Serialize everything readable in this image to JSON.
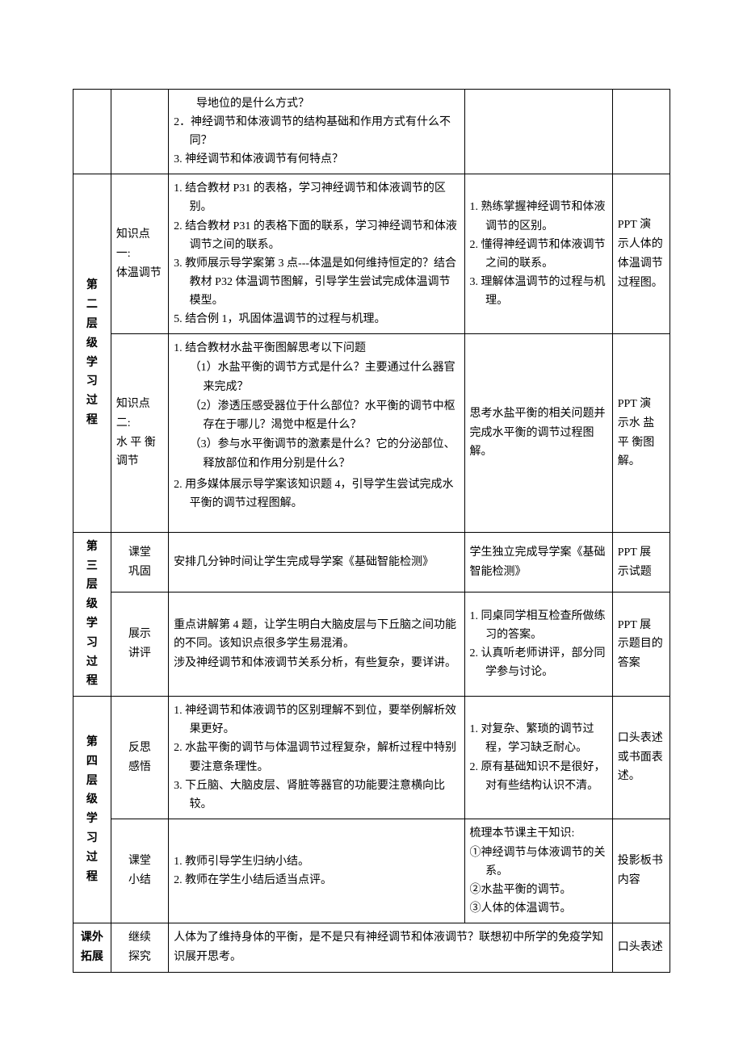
{
  "row0": {
    "c2_items": [
      "　　导地位的是什么方式？",
      "2．神经调节和体液调节的结构基础和作用方式有什么不同？",
      "3. 神经调节和体液调节有何特点？"
    ]
  },
  "row1": {
    "c0_lines": [
      "第",
      "二",
      "层",
      "级",
      "学",
      "习",
      "过",
      "程"
    ],
    "c1": "知识点一:\n体温调节",
    "c2_items": [
      "1. 结合教材 P31 的表格，学习神经调节和体液调节的区别。",
      "2. 结合教材 P31 的表格下面的联系，学习神经调节和体液调节之间的联系。",
      "3. 教师展示导学案第 3 点---体温是如何维持恒定的？结合教材 P32 体温调节图解，引导学生尝试完成体温调节模型。",
      "5. 结合例 1，巩固体温调节的过程与机理。"
    ],
    "c3_items": [
      "1. 熟练掌握神经调节和体液调节的区别。",
      "2. 懂得神经调节和体液调节之间的联系。",
      "3. 理解体温调节的过程与机理。"
    ],
    "c4": "PPT 演 示人体的体温调节过程图。"
  },
  "row2": {
    "c1": "知识点二:\n水 平 衡 调节",
    "c2_lead": "1. 结合教材水盐平衡图解思考以下问题",
    "c2_subs": [
      "（1）水盐平衡的调节方式是什么？主要通过什么器官来完成？",
      "（2）渗透压感受器位于什么部位？水平衡的调节中枢存在于哪儿？渴觉中枢是什么？",
      "（3）参与水平衡调节的激素是什么？它的分泌部位、释放部位和作用分别是什么？"
    ],
    "c2_tail": "2. 用多媒体展示导学案该知识题 4，引导学生尝试完成水平衡的调节过程图解。",
    "c3": "思考水盐平衡的相关问题并完成水平衡的调节过程图解。",
    "c4": "PPT 演 示水 盐 平 衡图解。"
  },
  "row3": {
    "c0_lines": [
      "第",
      "三",
      "层",
      "级",
      "学",
      "习",
      "过",
      "程"
    ],
    "c1": "课堂\n巩固",
    "c2": "安排几分钟时间让学生完成导学案《基础智能检测》",
    "c3": "学生独立完成导学案《基础智能检测》",
    "c4": "PPT 展 示试题"
  },
  "row4": {
    "c1": "展示\n讲评",
    "c2": "重点讲解第 4 题，让学生明白大脑皮层与下丘脑之间功能的不同。该知识点很多学生易混淆。\n涉及神经调节和体液调节关系分析，有些复杂，要详讲。",
    "c3_items": [
      "1. 同桌同学相互检查所做练习的答案。",
      "2. 认真听老师讲评，部分同学参与讨论。"
    ],
    "c4": "PPT 展 示题目的答案"
  },
  "row5": {
    "c0_lines": [
      "第",
      "四",
      "层",
      "级",
      "学",
      "习",
      "过",
      "程"
    ],
    "c1": "反思\n感悟",
    "c2_items": [
      "1. 神经调节和体液调节的区别理解不到位，要举例解析效果更好。",
      "2. 水盐平衡的调节与体温调节过程复杂，解析过程中特别要注意条理性。",
      "3. 下丘脑、大脑皮层、肾脏等器官的功能要注意横向比较。"
    ],
    "c3_items": [
      "1. 对复杂、繁琐的调节过程，学习缺乏耐心。",
      "2. 原有基础知识不是很好，对有些结构认识不清。"
    ],
    "c4": "口头表述或书面表述。"
  },
  "row6": {
    "c1": "课堂\n小结",
    "c2_items": [
      "1. 教师引导学生归纳小结。",
      "2. 教师在学生小结后适当点评。"
    ],
    "c3_lead": "梳理本节课主干知识:",
    "c3_items": [
      "①神经调节与体液调节的关系。",
      "②水盐平衡的调节。",
      "③人体的体温调节。"
    ],
    "c4": "投影板书内容"
  },
  "row7": {
    "c0": "课外\n拓展",
    "c1": "继续\n探究",
    "c2": "人体为了维持身体的平衡，是不是只有神经调节和体液调节？联想初中所学的免疫学知识展开思考。",
    "c4": "口头表述"
  }
}
